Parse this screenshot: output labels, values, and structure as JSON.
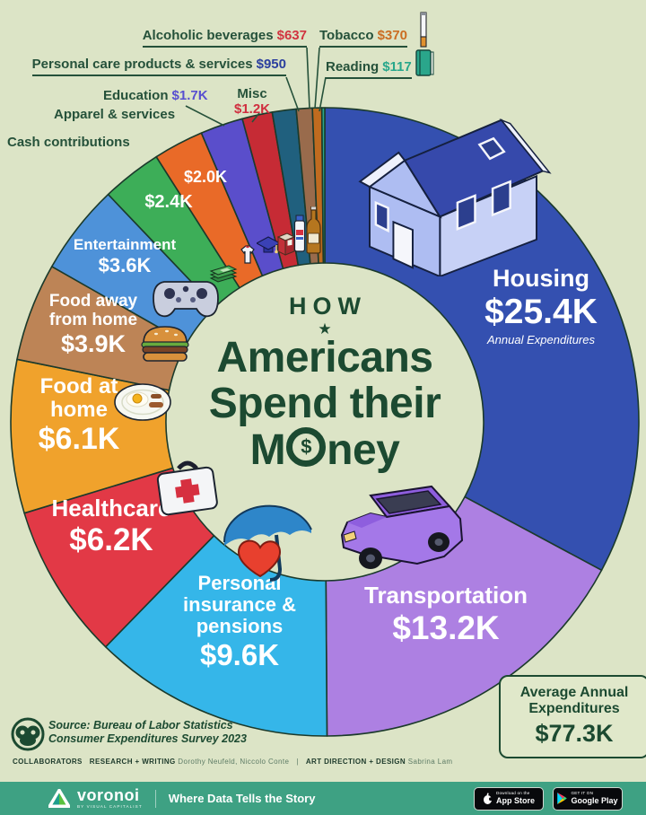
{
  "title": {
    "kicker": "HOW",
    "star": "★",
    "line1": "Americans",
    "line2": "Spend their",
    "money_pre": "M",
    "money_symbol": "$",
    "money_post": "ney"
  },
  "chart_data": {
    "type": "pie",
    "variant": "donut",
    "title": "How Americans Spend their Money",
    "unit": "US dollars, annual expenditures per household, 2023",
    "direction": "clockwise",
    "start_angle_deg": 0,
    "total_display": "$77.3K",
    "segments": [
      {
        "id": "housing",
        "label": "Housing",
        "value": 25400,
        "display": "$25.4K",
        "color": "#3450b0",
        "sub": "Annual Expenditures"
      },
      {
        "id": "transportation",
        "label": "Transportation",
        "value": 13200,
        "display": "$13.2K",
        "color": "#ad80e2"
      },
      {
        "id": "personal-insurance",
        "label": "Personal insurance & pensions",
        "value": 9600,
        "display": "$9.6K",
        "color": "#35b6e9"
      },
      {
        "id": "healthcare",
        "label": "Healthcare",
        "value": 6200,
        "display": "$6.2K",
        "color": "#e23946"
      },
      {
        "id": "food-at-home",
        "label": "Food at home",
        "value": 6100,
        "display": "$6.1K",
        "color": "#f0a22c"
      },
      {
        "id": "food-away",
        "label": "Food away from home",
        "value": 3900,
        "display": "$3.9K",
        "color": "#bd8456"
      },
      {
        "id": "entertainment",
        "label": "Entertainment",
        "value": 3600,
        "display": "$3.6K",
        "color": "#4e92d9"
      },
      {
        "id": "cash-contributions",
        "label": "Cash contributions",
        "value": 2400,
        "display": "$2.4K",
        "color": "#3dae58"
      },
      {
        "id": "apparel",
        "label": "Apparel & services",
        "value": 2000,
        "display": "$2.0K",
        "color": "#e96a28"
      },
      {
        "id": "education",
        "label": "Education",
        "value": 1700,
        "display": "$1.7K",
        "color": "#5a4ecb"
      },
      {
        "id": "misc",
        "label": "Misc",
        "value": 1200,
        "display": "$1.2K",
        "color": "#c62b35"
      },
      {
        "id": "personal-care",
        "label": "Personal care products & services",
        "value": 950,
        "display": "$950",
        "color": "#20607e"
      },
      {
        "id": "alcoholic",
        "label": "Alcoholic beverages",
        "value": 637,
        "display": "$637",
        "color": "#996b4c"
      },
      {
        "id": "tobacco",
        "label": "Tobacco",
        "value": 370,
        "display": "$370",
        "color": "#c06b1f"
      },
      {
        "id": "reading",
        "label": "Reading",
        "value": 117,
        "display": "$117",
        "color": "#2aa68b"
      }
    ]
  },
  "callout_colors": {
    "alcoholic": "#d13440",
    "tobacco": "#cb6d22",
    "personal_care": "#2b3f9e",
    "reading": "#27a78b",
    "misc": "#d02e3f",
    "education": "#584fd0"
  },
  "summary_box": {
    "line1": "Average Annual",
    "line2": "Expenditures",
    "value": "$77.3K"
  },
  "source": {
    "line1": "Source: Bureau of Labor Statistics",
    "line2": "Consumer Expenditures Survey 2023"
  },
  "collaborators": {
    "heading": "COLLABORATORS",
    "research_label": "RESEARCH + WRITING",
    "research_names": "Dorothy Neufeld, Niccolo Conte",
    "divider": "|",
    "design_label": "ART DIRECTION + DESIGN",
    "design_names": "Sabrina Lam"
  },
  "footer": {
    "brand": "voronoi",
    "brand_sub": "BY VISUAL CAPITALIST",
    "tagline": "Where Data Tells the Story",
    "appstore_top": "Download on the",
    "appstore_bottom": "App Store",
    "gplay_top": "GET IT ON",
    "gplay_bottom": "Google Play"
  },
  "icons": {
    "housing": "house-icon",
    "transportation": "car-icon",
    "personal_insurance": "umbrella-heart-icon",
    "healthcare": "first-aid-kit-icon",
    "food_at_home": "breakfast-plate-icon",
    "food_away": "burger-icon",
    "entertainment": "game-controller-icon",
    "cash_contributions": "cash-stack-icon",
    "apparel": "shirt-icon",
    "education": "graduation-cap-icon",
    "misc": "box-icon",
    "personal_care": "toothpaste-icon",
    "alcoholic": "beer-bottle-icon",
    "tobacco": "cigarette-icon",
    "reading": "book-icon"
  }
}
